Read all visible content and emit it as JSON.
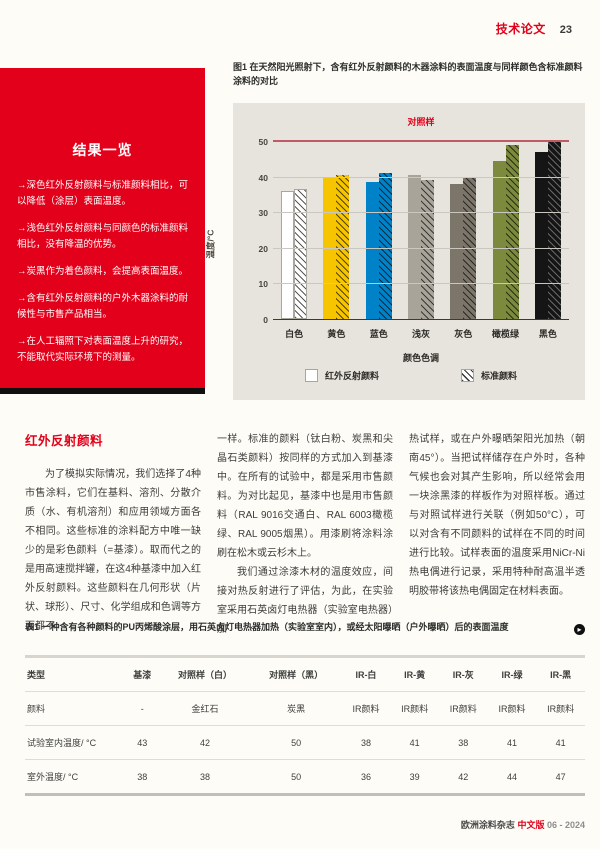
{
  "header": {
    "rubric": "技术论文",
    "page_number": "23"
  },
  "sidebar": {
    "title": "结果一览",
    "items": [
      "→深色红外反射颜料与标准颜料相比，可以降低（涂层）表面温度。",
      "→浅色红外反射颜料与同颜色的标准颜料相比，没有降温的优势。",
      "→炭黑作为着色颜料，会提高表面温度。",
      "→含有红外反射颜料的户外木器涂料的耐候性与市售产品相当。",
      "→在人工辐照下对表面温度上升的研究，不能取代实际环境下的测量。"
    ]
  },
  "figure": {
    "caption": "图1 在天然阳光照射下，含有红外反射颜料的木器涂料的表面温度与同样颜色含标准颜料涂料的对比"
  },
  "chart_data": {
    "type": "bar",
    "categories": [
      "白色",
      "黄色",
      "蓝色",
      "浅灰",
      "灰色",
      "橄榄绿",
      "黑色"
    ],
    "series": [
      {
        "name": "红外反射颜料",
        "values": [
          36,
          40,
          38.5,
          40.5,
          38,
          44.5,
          47
        ],
        "hatch": false
      },
      {
        "name": "标准颜料",
        "values": [
          36.5,
          40.5,
          41,
          39,
          40,
          49,
          50
        ],
        "hatch": true
      }
    ],
    "bar_colors": [
      "#ffffff",
      "#f6c500",
      "#0082c8",
      "#a8a49a",
      "#7c766a",
      "#7b8a3d",
      "#151515"
    ],
    "hatch_stripes": [
      "dark",
      "dark",
      "dark",
      "dark",
      "dark",
      "dark",
      "light"
    ],
    "ylabel": "温度/°C",
    "xlabel": "颜色色调",
    "ylim": [
      0,
      50
    ],
    "yticks": [
      0,
      10,
      20,
      30,
      40,
      50
    ],
    "grid": true,
    "legend_position": "bottom",
    "reference_line": {
      "label": "对照样",
      "value": 50,
      "color": "#c05a64"
    }
  },
  "article": {
    "heading": "红外反射颜料",
    "col1_p1": "为了模拟实际情况，我们选择了4种市售涂料，它们在基料、溶剂、分散介质（水、有机溶剂）和应用领域方面各不相同。这些标准的涂料配方中唯一缺少的是彩色颜料（=基漆）。取而代之的是用高速搅拌罐，在这4种基漆中加入红外反射颜料。这些颜料在几何形状（片状、球形）、尺寸、化学组成和色调等方面都不",
    "col2_p1": "一样。标准的颜料（钛白粉、炭黑和尖晶石类颜料）按同样的方式加入到基漆中。在所有的试验中，都是采用市售颜料。为对比起见，基漆中也是用市售颜料（RAL 9016交通白、RAL 6003橄榄绿、RAL 9005烟黑）。用漆刷将涂料涂刷在松木或云杉木上。",
    "col2_p2": "我们通过涂漆木材的温度效应，间接对热反射进行了评估，为此，在实验室采用石英卤灯电热器（实验室电热器）加",
    "col3_p1": "热试样，或在户外曝晒架阳光加热（朝南45°）。当把试样储存在户外时，各种气候也会对其产生影响，所以经常会用一块涂黑漆的样板作为对照样板。通过与对照试样进行关联（例如50°C），可以对含有不同颜料的试样在不同的时间进行比较。试样表面的温度采用NiCr-Ni热电偶进行记录，采用特种耐高温半透明胶带将该热电偶固定在材料表面。",
    "continue_glyph": "▸"
  },
  "table": {
    "caption": "表1 一种含有各种颜料的PU丙烯酸涂层，用石英卤灯电热器加热（实验室室内），或经太阳曝晒（户外曝晒）后的表面温度",
    "headers": [
      "类型",
      "基漆",
      "对照样（白）",
      "对照样（黑）",
      "IR-白",
      "IR-黄",
      "IR-灰",
      "IR-绿",
      "IR-黑"
    ],
    "rows": [
      [
        "颜料",
        "-",
        "金红石",
        "炭黑",
        "IR颜料",
        "IR颜料",
        "IR颜料",
        "IR颜料",
        "IR颜料"
      ],
      [
        "试验室内温度/ °C",
        "43",
        "42",
        "50",
        "38",
        "41",
        "38",
        "41",
        "41"
      ],
      [
        "室外温度/ °C",
        "38",
        "38",
        "50",
        "36",
        "39",
        "42",
        "44",
        "47"
      ]
    ]
  },
  "footer": {
    "journal": "欧洲涂料杂志",
    "edition": "中文版",
    "issue": "06 - 2024"
  },
  "colors": {
    "accent_red": "#e2001a",
    "chart_bg": "#e7e4de",
    "reference_line": "#c05a64"
  }
}
